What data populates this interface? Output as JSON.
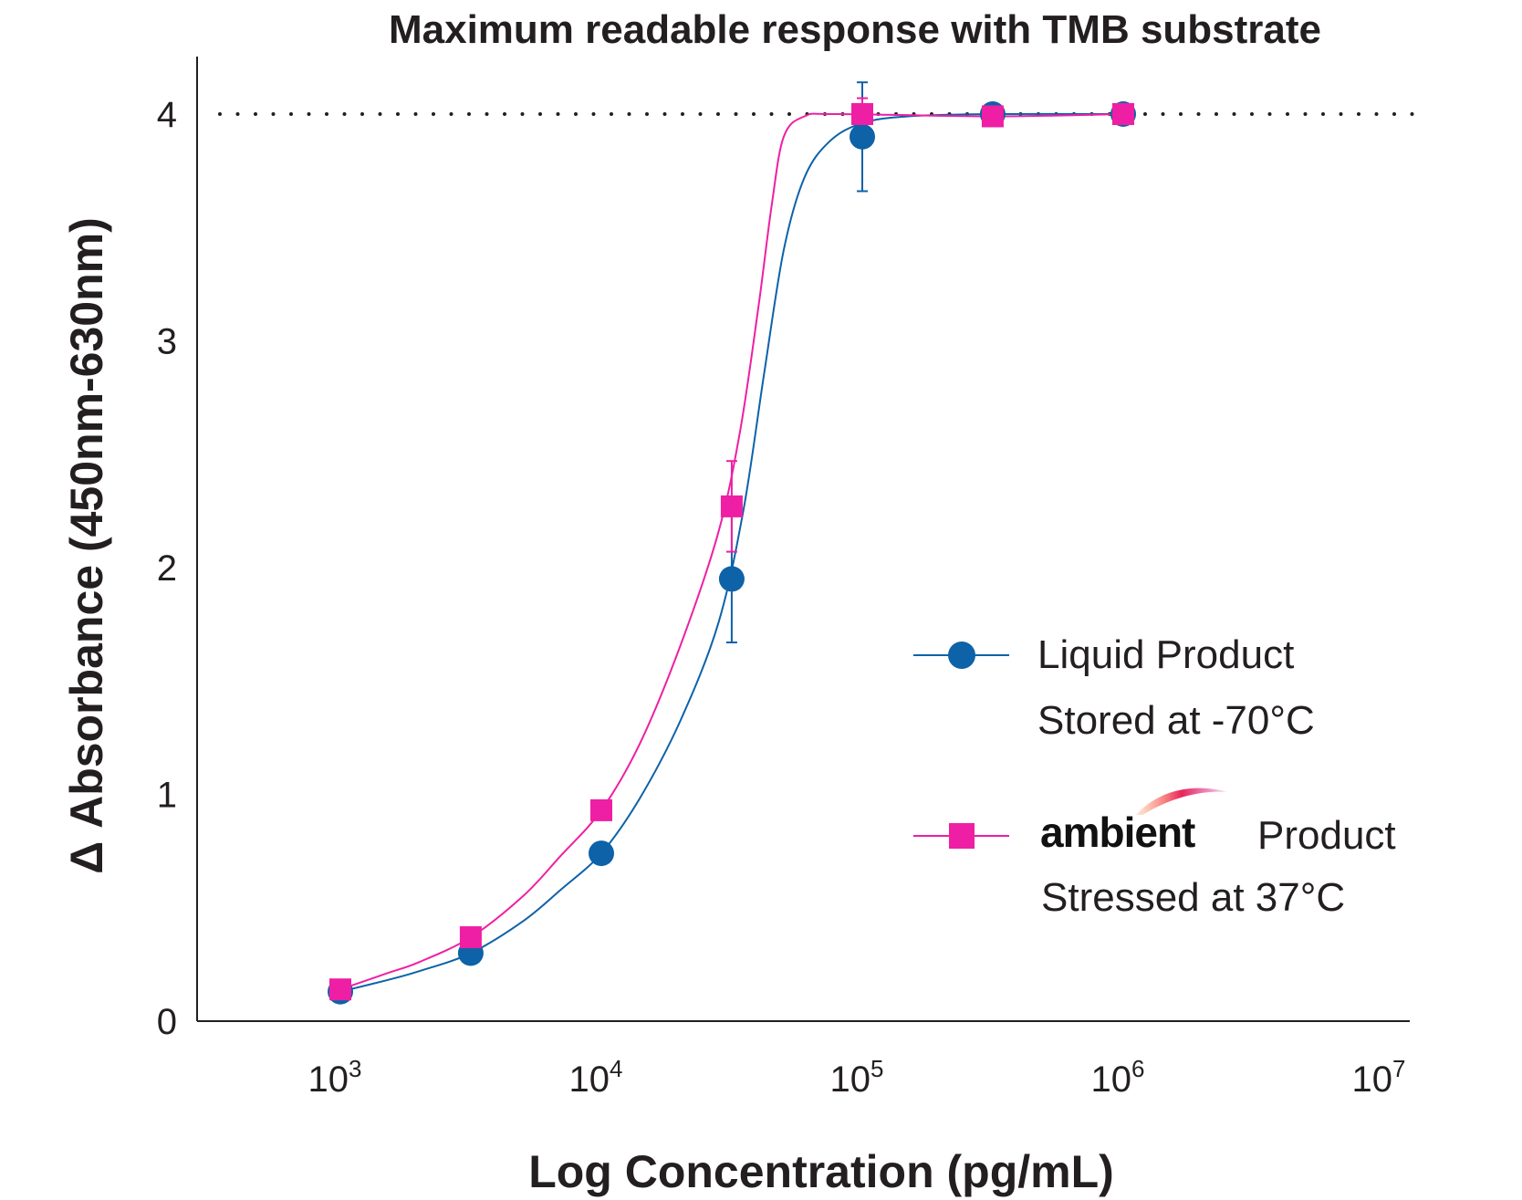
{
  "chart_data": {
    "type": "line",
    "title": "Maximum readable response with TMB substrate",
    "xlabel": "Log Concentration (pg/mL)",
    "ylabel": "Δ Absorbance (450nm-630nm)",
    "x_scale": "log",
    "xlim": [
      300,
      10000000
    ],
    "ylim": [
      0,
      4.25
    ],
    "x_ticks": [
      {
        "value": 1000,
        "base": "10",
        "exp": "3"
      },
      {
        "value": 10000,
        "base": "10",
        "exp": "4"
      },
      {
        "value": 100000,
        "base": "10",
        "exp": "5"
      },
      {
        "value": 1000000,
        "base": "10",
        "exp": "6"
      },
      {
        "value": 10000000,
        "base": "10",
        "exp": "7"
      }
    ],
    "y_ticks": [
      0,
      1,
      2,
      3,
      4
    ],
    "grid": false,
    "reference_line": {
      "y": 4.0,
      "style": "dotted"
    },
    "series": [
      {
        "name": "Liquid Product Stored at -70°C",
        "marker": "circle",
        "color": "#0d62a8",
        "points": [
          {
            "x": 1000,
            "y": 0.13,
            "err": 0
          },
          {
            "x": 3160,
            "y": 0.3,
            "err": 0
          },
          {
            "x": 10000,
            "y": 0.74,
            "err": 0
          },
          {
            "x": 31600,
            "y": 1.95,
            "err": 0.28
          },
          {
            "x": 100000,
            "y": 3.9,
            "err": 0.24
          },
          {
            "x": 316000,
            "y": 4.0,
            "err": 0
          },
          {
            "x": 1000000,
            "y": 4.0,
            "err": 0
          }
        ],
        "curve": [
          [
            1000,
            0.13
          ],
          [
            1500,
            0.18
          ],
          [
            2000,
            0.22
          ],
          [
            3160,
            0.3
          ],
          [
            5000,
            0.44
          ],
          [
            7000,
            0.58
          ],
          [
            10000,
            0.74
          ],
          [
            14000,
            0.98
          ],
          [
            20000,
            1.32
          ],
          [
            28000,
            1.75
          ],
          [
            35000,
            2.25
          ],
          [
            42000,
            2.85
          ],
          [
            50000,
            3.4
          ],
          [
            60000,
            3.72
          ],
          [
            75000,
            3.88
          ],
          [
            100000,
            3.96
          ],
          [
            150000,
            3.99
          ],
          [
            316000,
            4.0
          ],
          [
            1000000,
            4.0
          ]
        ]
      },
      {
        "name": "ambient Product Stressed at 37°C",
        "marker": "square",
        "color": "#ee1fa4",
        "points": [
          {
            "x": 1000,
            "y": 0.14,
            "err": 0
          },
          {
            "x": 3160,
            "y": 0.37,
            "err": 0
          },
          {
            "x": 10000,
            "y": 0.93,
            "err": 0
          },
          {
            "x": 31600,
            "y": 2.27,
            "err": 0.2
          },
          {
            "x": 100000,
            "y": 4.0,
            "err": 0.07
          },
          {
            "x": 316000,
            "y": 3.99,
            "err": 0
          },
          {
            "x": 1000000,
            "y": 4.0,
            "err": 0
          }
        ],
        "curve": [
          [
            1000,
            0.14
          ],
          [
            1500,
            0.21
          ],
          [
            2000,
            0.26
          ],
          [
            3160,
            0.37
          ],
          [
            5000,
            0.55
          ],
          [
            7000,
            0.73
          ],
          [
            10000,
            0.93
          ],
          [
            14000,
            1.22
          ],
          [
            20000,
            1.65
          ],
          [
            28000,
            2.15
          ],
          [
            34000,
            2.6
          ],
          [
            40000,
            3.15
          ],
          [
            45000,
            3.6
          ],
          [
            50000,
            3.9
          ],
          [
            60000,
            3.99
          ],
          [
            80000,
            4.0
          ],
          [
            316000,
            3.99
          ],
          [
            1000000,
            4.0
          ]
        ]
      }
    ],
    "legend": {
      "placement": "right",
      "entries": [
        {
          "line1": "Liquid Product",
          "line2": "Stored at -70°C"
        },
        {
          "brand": "ambient",
          "line1": "Product",
          "line2": "Stressed at 37°C"
        }
      ]
    }
  }
}
